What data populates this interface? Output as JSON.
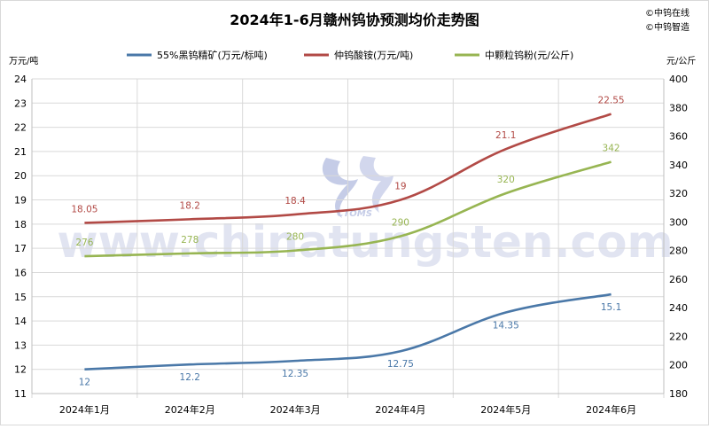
{
  "chart_data": {
    "type": "line",
    "title": "2024年1-6月赣州钨协预测均价走势图",
    "copyright": [
      "©中钨在线",
      "©中钨智造"
    ],
    "watermark": "www.chinatungsten.com",
    "watermark_logo": "CTOMS",
    "categories": [
      "2024年1月",
      "2024年2月",
      "2024年3月",
      "2024年4月",
      "2024年5月",
      "2024年6月"
    ],
    "y_left": {
      "label": "万元/吨",
      "ylim": [
        11,
        24
      ],
      "ticks": [
        "11",
        "12",
        "13",
        "14",
        "15",
        "16",
        "17",
        "18",
        "19",
        "20",
        "21",
        "22",
        "23",
        "24"
      ]
    },
    "y_right": {
      "label": "元/公斤",
      "ylim": [
        180,
        400
      ],
      "ticks": [
        "180",
        "200",
        "220",
        "240",
        "260",
        "280",
        "300",
        "320",
        "340",
        "360",
        "380",
        "400"
      ]
    },
    "grid": true,
    "legend_position": "top",
    "series": [
      {
        "name": "55%黑钨精矿(万元/标吨)",
        "axis": "left",
        "color": "#4a78a8",
        "values": [
          12,
          12.2,
          12.35,
          12.75,
          14.35,
          15.1
        ],
        "labels": [
          "12",
          "12.2",
          "12.35",
          "12.75",
          "14.35",
          "15.1"
        ]
      },
      {
        "name": "仲钨酸铵(万元/吨)",
        "axis": "left",
        "color": "#b24a46",
        "values": [
          18.05,
          18.2,
          18.4,
          19,
          21.1,
          22.55
        ],
        "labels": [
          "18.05",
          "18.2",
          "18.4",
          "19",
          "21.1",
          "22.55"
        ]
      },
      {
        "name": "中颗粒钨粉(元/公斤)",
        "axis": "right",
        "color": "#97b552",
        "values": [
          276,
          278,
          280,
          290,
          320,
          342
        ],
        "labels": [
          "276",
          "278",
          "280",
          "290",
          "320",
          "342"
        ]
      }
    ]
  }
}
